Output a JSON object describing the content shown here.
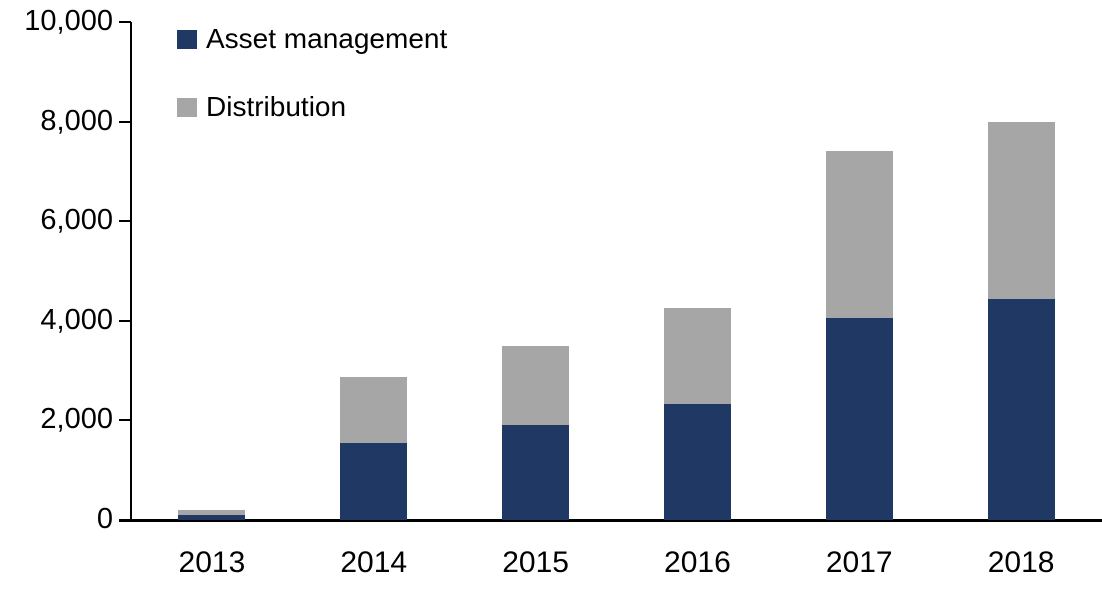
{
  "chart_data": {
    "type": "bar",
    "stacked": true,
    "title": "",
    "xlabel": "",
    "ylabel": "",
    "categories": [
      "2013",
      "2014",
      "2015",
      "2016",
      "2017",
      "2018"
    ],
    "series": [
      {
        "name": "Asset management",
        "color": "#203864",
        "values": [
          100,
          1550,
          1900,
          2320,
          4050,
          4430
        ]
      },
      {
        "name": "Distribution",
        "color": "#A6A6A6",
        "values": [
          100,
          1320,
          1600,
          1930,
          3350,
          3570
        ]
      }
    ],
    "totals": [
      200,
      2870,
      3500,
      4250,
      7400,
      8000
    ],
    "ylim": [
      0,
      10000
    ],
    "ytick_interval": 2000,
    "ytick_labels": [
      "0",
      "2,000",
      "4,000",
      "6,000",
      "8,000",
      "10,000"
    ],
    "grid": false,
    "legend_position": "top-left",
    "axis_color": "#000000"
  }
}
